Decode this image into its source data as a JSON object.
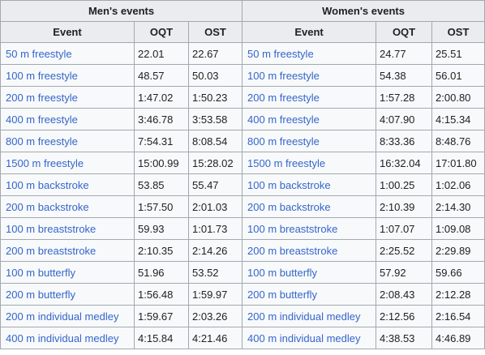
{
  "groups": {
    "men": "Men's events",
    "women": "Women's events"
  },
  "columns": {
    "event": "Event",
    "oqt": "OQT",
    "ost": "OST"
  },
  "link_color": "#3366cc",
  "rows": [
    {
      "men": {
        "event": "50 m freestyle",
        "oqt": "22.01",
        "ost": "22.67"
      },
      "women": {
        "event": "50 m freestyle",
        "oqt": "24.77",
        "ost": "25.51"
      }
    },
    {
      "men": {
        "event": "100 m freestyle",
        "oqt": "48.57",
        "ost": "50.03"
      },
      "women": {
        "event": "100 m freestyle",
        "oqt": "54.38",
        "ost": "56.01"
      }
    },
    {
      "men": {
        "event": "200 m freestyle",
        "oqt": "1:47.02",
        "ost": "1:50.23"
      },
      "women": {
        "event": "200 m freestyle",
        "oqt": "1:57.28",
        "ost": "2:00.80"
      }
    },
    {
      "men": {
        "event": "400 m freestyle",
        "oqt": "3:46.78",
        "ost": "3:53.58"
      },
      "women": {
        "event": "400 m freestyle",
        "oqt": "4:07.90",
        "ost": "4:15.34"
      }
    },
    {
      "men": {
        "event": "800 m freestyle",
        "oqt": "7:54.31",
        "ost": "8:08.54"
      },
      "women": {
        "event": "800 m freestyle",
        "oqt": "8:33.36",
        "ost": "8:48.76"
      }
    },
    {
      "men": {
        "event": "1500 m freestyle",
        "oqt": "15:00.99",
        "ost": "15:28.02"
      },
      "women": {
        "event": "1500 m freestyle",
        "oqt": "16:32.04",
        "ost": "17:01.80"
      }
    },
    {
      "men": {
        "event": "100 m backstroke",
        "oqt": "53.85",
        "ost": "55.47"
      },
      "women": {
        "event": "100 m backstroke",
        "oqt": "1:00.25",
        "ost": "1:02.06"
      }
    },
    {
      "men": {
        "event": "200 m backstroke",
        "oqt": "1:57.50",
        "ost": "2:01.03"
      },
      "women": {
        "event": "200 m backstroke",
        "oqt": "2:10.39",
        "ost": "2:14.30"
      }
    },
    {
      "men": {
        "event": "100 m breaststroke",
        "oqt": "59.93",
        "ost": "1:01.73"
      },
      "women": {
        "event": "100 m breaststroke",
        "oqt": "1:07.07",
        "ost": "1:09.08"
      }
    },
    {
      "men": {
        "event": "200 m breaststroke",
        "oqt": "2:10.35",
        "ost": "2:14.26"
      },
      "women": {
        "event": "200 m breaststroke",
        "oqt": "2:25.52",
        "ost": "2:29.89"
      }
    },
    {
      "men": {
        "event": "100 m butterfly",
        "oqt": "51.96",
        "ost": "53.52"
      },
      "women": {
        "event": "100 m butterfly",
        "oqt": "57.92",
        "ost": "59.66"
      }
    },
    {
      "men": {
        "event": "200 m butterfly",
        "oqt": "1:56.48",
        "ost": "1:59.97"
      },
      "women": {
        "event": "200 m butterfly",
        "oqt": "2:08.43",
        "ost": "2:12.28"
      }
    },
    {
      "men": {
        "event": "200 m individual medley",
        "oqt": "1:59.67",
        "ost": "2:03.26"
      },
      "women": {
        "event": "200 m individual medley",
        "oqt": "2:12.56",
        "ost": "2:16.54"
      }
    },
    {
      "men": {
        "event": "400 m individual medley",
        "oqt": "4:15.84",
        "ost": "4:21.46"
      },
      "women": {
        "event": "400 m individual medley",
        "oqt": "4:38.53",
        "ost": "4:46.89"
      }
    }
  ]
}
